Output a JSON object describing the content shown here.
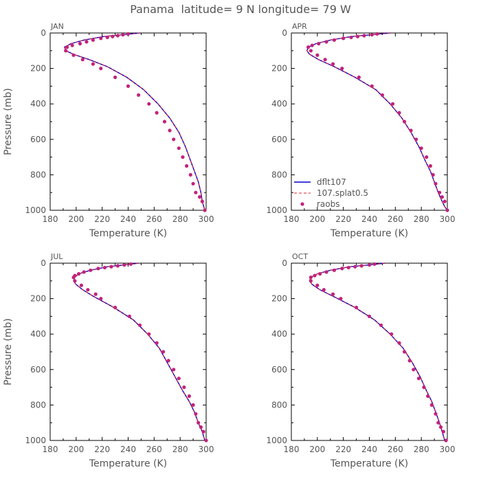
{
  "figure": {
    "title": "Panama  latitude= 9 N longitude= 79 W",
    "xlabel": "Temperature (K)",
    "ylabel": "Pressure (mb)",
    "colors": {
      "dflt107": "#0000cc",
      "splat": "#e8202a",
      "raobs": "#c2237a",
      "axis": "#000000",
      "text": "#555555"
    }
  },
  "legend": {
    "placement": "bottom-left of APR panel",
    "items": [
      "dflt107",
      "107.splat0.5",
      "raobs"
    ]
  },
  "chart_data": [
    {
      "type": "line",
      "panel": "JAN",
      "xlim": [
        180,
        300
      ],
      "ylim": [
        1000,
        0
      ],
      "xticks": [
        180,
        200,
        220,
        240,
        260,
        280,
        300
      ],
      "yticks": [
        0,
        200,
        400,
        600,
        800,
        1000
      ],
      "series": [
        {
          "name": "dflt107",
          "style": "solid",
          "x": [
            249,
            236,
            221,
            206,
            196,
            191,
            192,
            198,
            210,
            224,
            239,
            252,
            263,
            272,
            279,
            284,
            288,
            291,
            294,
            296,
            297,
            299
          ],
          "y": [
            0,
            10,
            20,
            40,
            60,
            80,
            100,
            120,
            150,
            190,
            250,
            320,
            400,
            480,
            560,
            640,
            720,
            780,
            840,
            900,
            950,
            1000
          ]
        },
        {
          "name": "107.splat0.5",
          "style": "dashed",
          "x": [
            249,
            236,
            221,
            206,
            196,
            191,
            192,
            198,
            210,
            224,
            239,
            252,
            263,
            272,
            279,
            284,
            288,
            291,
            294,
            296,
            297,
            299
          ],
          "y": [
            0,
            10,
            20,
            40,
            60,
            80,
            100,
            120,
            150,
            190,
            250,
            320,
            400,
            480,
            560,
            640,
            720,
            780,
            840,
            900,
            950,
            1000
          ]
        },
        {
          "name": "raobs",
          "style": "points",
          "x": [
            240,
            236,
            232,
            228,
            224,
            219,
            213,
            208,
            203,
            197,
            193,
            192,
            198,
            205,
            213,
            219,
            230,
            240,
            248,
            256,
            262,
            268,
            272,
            275,
            279,
            282,
            285,
            288,
            290,
            292,
            295,
            297,
            299
          ],
          "y": [
            5,
            10,
            15,
            20,
            25,
            30,
            40,
            50,
            60,
            70,
            80,
            100,
            125,
            150,
            175,
            200,
            250,
            300,
            350,
            400,
            450,
            500,
            550,
            600,
            650,
            700,
            750,
            800,
            850,
            900,
            925,
            950,
            1000
          ]
        }
      ]
    },
    {
      "type": "line",
      "panel": "APR",
      "xlim": [
        180,
        300
      ],
      "ylim": [
        1000,
        0
      ],
      "xticks": [
        180,
        200,
        220,
        240,
        260,
        280,
        300
      ],
      "yticks": [
        0,
        200,
        400,
        600,
        800,
        1000
      ],
      "series": [
        {
          "name": "dflt107",
          "style": "solid",
          "x": [
            256,
            242,
            226,
            210,
            199,
            193,
            192,
            194,
            201,
            213,
            229,
            245,
            256,
            265,
            272,
            278,
            283,
            287,
            290,
            293,
            296,
            298,
            300
          ],
          "y": [
            0,
            10,
            20,
            40,
            60,
            80,
            100,
            120,
            150,
            190,
            250,
            320,
            400,
            480,
            560,
            640,
            720,
            780,
            840,
            900,
            950,
            980,
            1000
          ]
        },
        {
          "name": "107.splat0.5",
          "style": "dashed",
          "x": [
            256,
            242,
            226,
            210,
            199,
            193,
            192,
            194,
            201,
            213,
            229,
            245,
            256,
            265,
            272,
            278,
            283,
            287,
            290,
            293,
            296,
            298,
            300
          ],
          "y": [
            0,
            10,
            20,
            40,
            60,
            80,
            100,
            120,
            150,
            190,
            250,
            320,
            400,
            480,
            560,
            640,
            720,
            780,
            840,
            900,
            950,
            980,
            1000
          ]
        },
        {
          "name": "raobs",
          "style": "points",
          "x": [
            246,
            242,
            236,
            231,
            226,
            220,
            213,
            207,
            201,
            196,
            193,
            195,
            200,
            206,
            212,
            219,
            232,
            242,
            250,
            258,
            263,
            267,
            272,
            276,
            280,
            284,
            287,
            289,
            291,
            294,
            296,
            298,
            300
          ],
          "y": [
            5,
            10,
            15,
            20,
            25,
            30,
            40,
            50,
            60,
            70,
            80,
            100,
            125,
            150,
            175,
            200,
            250,
            300,
            350,
            400,
            450,
            500,
            550,
            600,
            650,
            700,
            750,
            800,
            850,
            900,
            925,
            950,
            1000
          ]
        }
      ]
    },
    {
      "type": "line",
      "panel": "JUL",
      "xlim": [
        180,
        300
      ],
      "ylim": [
        1000,
        0
      ],
      "xticks": [
        180,
        200,
        220,
        240,
        260,
        280,
        300
      ],
      "yticks": [
        0,
        200,
        400,
        600,
        800,
        1000
      ],
      "series": [
        {
          "name": "dflt107",
          "style": "solid",
          "x": [
            248,
            237,
            224,
            211,
            202,
            199,
            198,
            200,
            205,
            214,
            229,
            244,
            255,
            264,
            270,
            276,
            282,
            287,
            291,
            294,
            297,
            299
          ],
          "y": [
            0,
            10,
            20,
            40,
            60,
            80,
            100,
            120,
            150,
            190,
            250,
            320,
            400,
            480,
            560,
            640,
            720,
            780,
            840,
            900,
            950,
            1000
          ]
        },
        {
          "name": "107.splat0.5",
          "style": "dashed",
          "x": [
            248,
            237,
            224,
            211,
            202,
            199,
            198,
            200,
            205,
            214,
            229,
            244,
            255,
            264,
            270,
            276,
            282,
            287,
            291,
            294,
            297,
            299
          ],
          "y": [
            0,
            10,
            20,
            40,
            60,
            80,
            100,
            120,
            150,
            190,
            250,
            320,
            400,
            480,
            560,
            640,
            720,
            780,
            840,
            900,
            950,
            1000
          ]
        },
        {
          "name": "raobs",
          "style": "points",
          "x": [
            242,
            237,
            232,
            227,
            222,
            217,
            211,
            206,
            202,
            199,
            198,
            199,
            204,
            209,
            215,
            219,
            230,
            241,
            249,
            256,
            262,
            267,
            271,
            275,
            279,
            283,
            287,
            290,
            292,
            294,
            296,
            298,
            300
          ],
          "y": [
            5,
            10,
            15,
            20,
            25,
            30,
            40,
            50,
            60,
            70,
            80,
            100,
            125,
            150,
            175,
            200,
            250,
            300,
            350,
            400,
            450,
            500,
            550,
            600,
            650,
            700,
            750,
            800,
            850,
            900,
            925,
            950,
            1000
          ]
        }
      ]
    },
    {
      "type": "line",
      "panel": "OCT",
      "xlim": [
        180,
        300
      ],
      "ylim": [
        1000,
        0
      ],
      "xticks": [
        180,
        200,
        220,
        240,
        260,
        280,
        300
      ],
      "yticks": [
        0,
        200,
        400,
        600,
        800,
        1000
      ],
      "series": [
        {
          "name": "dflt107",
          "style": "solid",
          "x": [
            252,
            240,
            225,
            210,
            200,
            195,
            194,
            196,
            202,
            213,
            229,
            244,
            256,
            266,
            273,
            279,
            284,
            288,
            291,
            294,
            296,
            298
          ],
          "y": [
            0,
            10,
            20,
            40,
            60,
            80,
            100,
            120,
            150,
            190,
            250,
            320,
            400,
            480,
            560,
            640,
            720,
            780,
            840,
            900,
            950,
            1000
          ]
        },
        {
          "name": "107.splat0.5",
          "style": "dashed",
          "x": [
            252,
            240,
            225,
            210,
            200,
            195,
            194,
            196,
            202,
            213,
            229,
            244,
            256,
            266,
            273,
            279,
            284,
            288,
            291,
            294,
            296,
            298
          ],
          "y": [
            0,
            10,
            20,
            40,
            60,
            80,
            100,
            120,
            150,
            190,
            250,
            320,
            400,
            480,
            560,
            640,
            720,
            780,
            840,
            900,
            950,
            1000
          ]
        },
        {
          "name": "raobs",
          "style": "points",
          "x": [
            244,
            240,
            234,
            229,
            224,
            219,
            213,
            207,
            202,
            198,
            195,
            195,
            200,
            205,
            212,
            218,
            230,
            240,
            249,
            257,
            263,
            267,
            271,
            274,
            278,
            282,
            285,
            288,
            291,
            293,
            295,
            297,
            299
          ],
          "y": [
            5,
            10,
            15,
            20,
            25,
            30,
            40,
            50,
            60,
            70,
            80,
            100,
            125,
            150,
            175,
            200,
            250,
            300,
            350,
            400,
            450,
            500,
            550,
            600,
            650,
            700,
            750,
            800,
            850,
            900,
            925,
            950,
            1000
          ]
        }
      ]
    }
  ]
}
